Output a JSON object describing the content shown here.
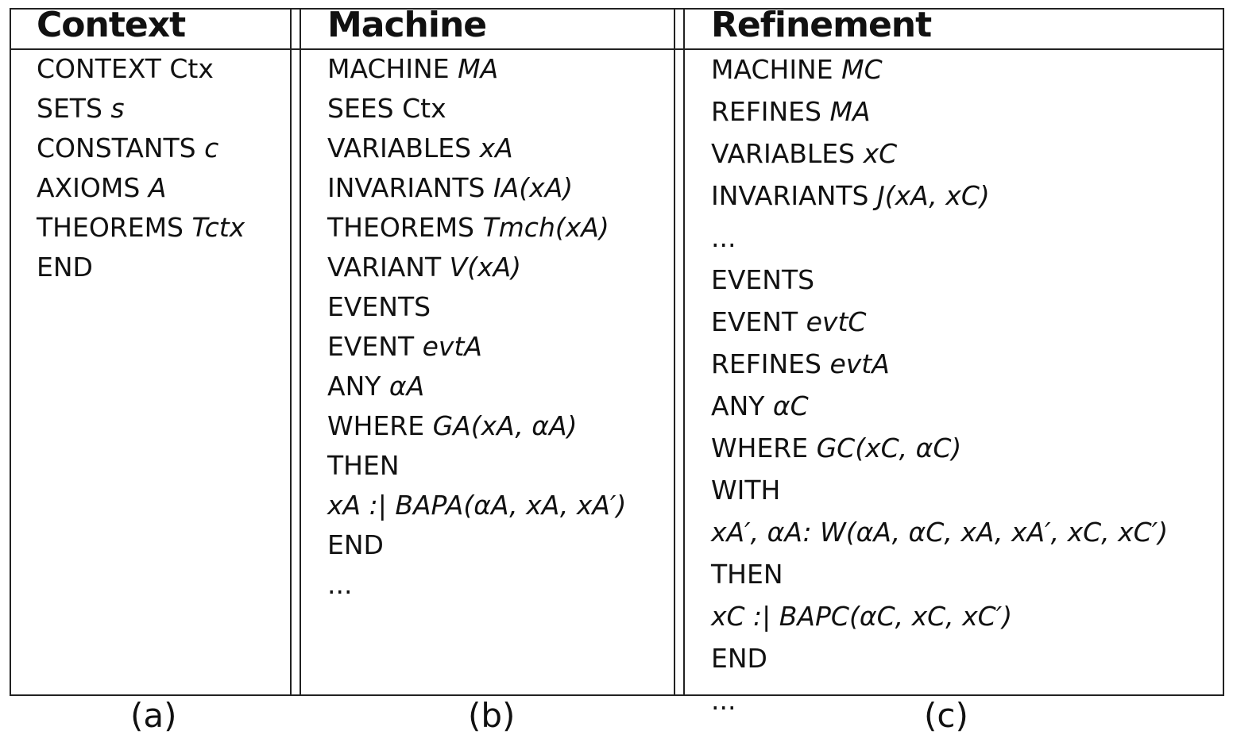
{
  "columns": [
    {
      "header": "Context",
      "caption": "(a)",
      "lines": [
        {
          "kw": "CONTEXT Ctx",
          "expr": ""
        },
        {
          "kw": "SETS ",
          "expr": "s"
        },
        {
          "kw": "CONSTANTS ",
          "expr": "c"
        },
        {
          "kw": "AXIOMS ",
          "expr": "A"
        },
        {
          "kw": "THEOREMS ",
          "expr": "Tctx"
        },
        {
          "kw": "END",
          "expr": ""
        }
      ]
    },
    {
      "header": "Machine",
      "caption": "(b)",
      "lines": [
        {
          "kw": "MACHINE ",
          "expr": "MA"
        },
        {
          "kw": "SEES Ctx",
          "expr": ""
        },
        {
          "kw": "VARIABLES ",
          "expr": "xA"
        },
        {
          "kw": "INVARIANTS ",
          "expr": "IA(xA)"
        },
        {
          "kw": "THEOREMS ",
          "expr": "Tmch(xA)"
        },
        {
          "kw": "VARIANT ",
          "expr": "V(xA)"
        },
        {
          "kw": "EVENTS",
          "expr": ""
        },
        {
          "kw": "EVENT ",
          "expr": "evtA"
        },
        {
          "kw": "ANY ",
          "expr": "αA"
        },
        {
          "kw": "WHERE ",
          "expr": "GA(xA, αA)"
        },
        {
          "kw": "THEN",
          "expr": ""
        },
        {
          "kw": "",
          "expr": "xA :| BAPA(αA, xA, xA′)"
        },
        {
          "kw": "END",
          "expr": ""
        },
        {
          "kw": "...",
          "expr": ""
        }
      ]
    },
    {
      "header": "Refinement",
      "caption": "(c)",
      "lines": [
        {
          "kw": "MACHINE ",
          "expr": "MC"
        },
        {
          "kw": "REFINES ",
          "expr": "MA"
        },
        {
          "kw": "VARIABLES ",
          "expr": "xC"
        },
        {
          "kw": "INVARIANTS ",
          "expr": "J(xA, xC)"
        },
        {
          "kw": "...",
          "expr": ""
        },
        {
          "kw": "EVENTS",
          "expr": ""
        },
        {
          "kw": "EVENT ",
          "expr": "evtC"
        },
        {
          "kw": "REFINES ",
          "expr": "evtA"
        },
        {
          "kw": "ANY ",
          "expr": "αC"
        },
        {
          "kw": "WHERE ",
          "expr": "GC(xC, αC)"
        },
        {
          "kw": "WITH",
          "expr": ""
        },
        {
          "kw": "",
          "expr": "xA′, αA: W(αA, αC, xA, xA′, xC, xC′)"
        },
        {
          "kw": "THEN",
          "expr": ""
        },
        {
          "kw": "",
          "expr": "xC :| BAPC(αC, xC, xC′)"
        },
        {
          "kw": "END",
          "expr": ""
        },
        {
          "kw": "...",
          "expr": ""
        }
      ]
    }
  ]
}
